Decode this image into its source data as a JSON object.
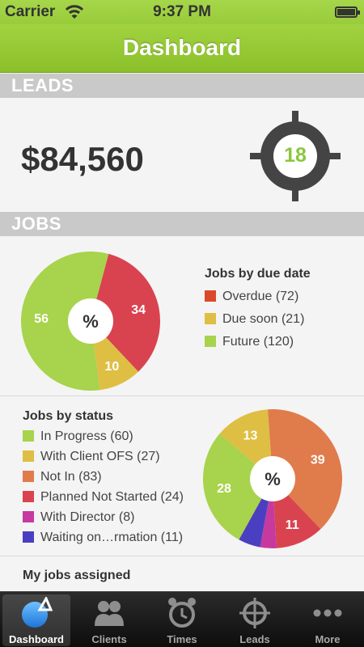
{
  "status_bar": {
    "carrier": "Carrier",
    "time": "9:37 PM"
  },
  "nav": {
    "title": "Dashboard"
  },
  "leads": {
    "header": "LEADS",
    "value": "$84,560",
    "count": "18"
  },
  "jobs": {
    "header": "JOBS"
  },
  "colors": {
    "accent": "#8cc63f",
    "section_header": "#c9c9c9"
  },
  "chart_data": [
    {
      "type": "pie",
      "title": "Jobs by due date",
      "center_label": "%",
      "categories": [
        "Overdue",
        "Due soon",
        "Future"
      ],
      "values": [
        72,
        21,
        120
      ],
      "legend": [
        "Overdue (72)",
        "Due soon (21)",
        "Future (120)"
      ],
      "slice_labels": [
        "34",
        "10",
        "56"
      ],
      "colors": [
        "#d9434f",
        "#dfbe44",
        "#a8d34c"
      ],
      "legend_colors": [
        "#d94a2b",
        "#dfbe44",
        "#a8d34c"
      ]
    },
    {
      "type": "pie",
      "title": "Jobs by status",
      "center_label": "%",
      "categories": [
        "In Progress",
        "With Client OFS",
        "Not In",
        "Planned Not Started",
        "With Director",
        "Waiting on…rmation"
      ],
      "values": [
        60,
        27,
        83,
        24,
        8,
        11
      ],
      "legend": [
        "In Progress (60)",
        "With Client OFS (27)",
        "Not In (83)",
        "Planned Not Started (24)",
        "With Director (8)",
        "Waiting on…rmation (11)"
      ],
      "slice_labels": [
        "28",
        "13",
        "39",
        "11",
        "",
        ""
      ],
      "colors": [
        "#a8d34c",
        "#dfbe44",
        "#e07b4c",
        "#d9434f",
        "#c63aa0",
        "#4b3fc1"
      ]
    }
  ],
  "my_jobs": {
    "label": "My jobs assigned"
  },
  "tabs": [
    {
      "label": "Dashboard",
      "icon": "dashboard-icon"
    },
    {
      "label": "Clients",
      "icon": "clients-icon"
    },
    {
      "label": "Times",
      "icon": "alarm-clock-icon"
    },
    {
      "label": "Leads",
      "icon": "target-icon"
    },
    {
      "label": "More",
      "icon": "more-icon"
    }
  ]
}
